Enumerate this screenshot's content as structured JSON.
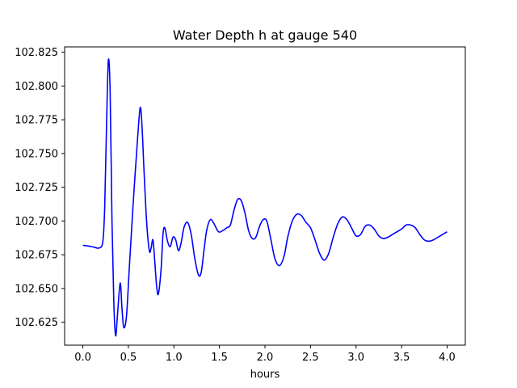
{
  "chart_data": {
    "type": "line",
    "title": "Water Depth h at gauge 540",
    "xlabel": "hours",
    "ylabel": "",
    "xlim": [
      -0.2,
      4.2
    ],
    "ylim": [
      102.608,
      102.829
    ],
    "xticks": [
      0.0,
      0.5,
      1.0,
      1.5,
      2.0,
      2.5,
      3.0,
      3.5,
      4.0
    ],
    "xtick_labels": [
      "0.0",
      "0.5",
      "1.0",
      "1.5",
      "2.0",
      "2.5",
      "3.0",
      "3.5",
      "4.0"
    ],
    "yticks": [
      102.625,
      102.65,
      102.675,
      102.7,
      102.725,
      102.75,
      102.775,
      102.8,
      102.825
    ],
    "ytick_labels": [
      "102.625",
      "102.650",
      "102.675",
      "102.700",
      "102.725",
      "102.750",
      "102.775",
      "102.800",
      "102.825"
    ],
    "grid": false,
    "series": [
      {
        "color": "#0000ff",
        "x": [
          0.0,
          0.1,
          0.18,
          0.22,
          0.24,
          0.26,
          0.28,
          0.3,
          0.32,
          0.34,
          0.36,
          0.38,
          0.41,
          0.43,
          0.45,
          0.48,
          0.51,
          0.55,
          0.6,
          0.63,
          0.65,
          0.67,
          0.7,
          0.73,
          0.75,
          0.77,
          0.79,
          0.81,
          0.83,
          0.86,
          0.88,
          0.9,
          0.93,
          0.96,
          0.99,
          1.02,
          1.05,
          1.08,
          1.11,
          1.15,
          1.19,
          1.23,
          1.27,
          1.3,
          1.33,
          1.36,
          1.4,
          1.44,
          1.49,
          1.54,
          1.58,
          1.62,
          1.66,
          1.7,
          1.74,
          1.78,
          1.82,
          1.86,
          1.9,
          1.94,
          1.98,
          2.02,
          2.06,
          2.11,
          2.16,
          2.21,
          2.25,
          2.3,
          2.35,
          2.4,
          2.45,
          2.5,
          2.55,
          2.6,
          2.65,
          2.7,
          2.75,
          2.8,
          2.85,
          2.9,
          2.95,
          3.0,
          3.05,
          3.1,
          3.15,
          3.2,
          3.25,
          3.3,
          3.35,
          3.4,
          3.45,
          3.5,
          3.55,
          3.6,
          3.65,
          3.7,
          3.75,
          3.8,
          3.85,
          3.9,
          3.95,
          4.0
        ],
        "y": [
          102.682,
          102.681,
          102.68,
          102.685,
          102.71,
          102.77,
          102.819,
          102.795,
          102.7,
          102.64,
          102.615,
          102.63,
          102.654,
          102.635,
          102.621,
          102.63,
          102.665,
          102.71,
          102.76,
          102.784,
          102.77,
          102.74,
          102.7,
          102.678,
          102.68,
          102.686,
          102.67,
          102.652,
          102.646,
          102.665,
          102.69,
          102.695,
          102.685,
          102.681,
          102.688,
          102.686,
          102.678,
          102.684,
          102.695,
          102.699,
          102.69,
          102.672,
          102.66,
          102.662,
          102.678,
          102.693,
          102.701,
          102.698,
          102.692,
          102.693,
          102.695,
          102.697,
          102.708,
          102.716,
          102.715,
          102.706,
          102.693,
          102.687,
          102.688,
          102.696,
          102.701,
          102.7,
          102.688,
          102.672,
          102.667,
          102.674,
          102.688,
          102.7,
          102.705,
          102.704,
          102.699,
          102.695,
          102.686,
          102.676,
          102.671,
          102.676,
          102.688,
          102.698,
          102.703,
          102.701,
          102.695,
          102.689,
          102.69,
          102.696,
          102.697,
          102.694,
          102.689,
          102.687,
          102.688,
          102.69,
          102.692,
          102.694,
          102.697,
          102.697,
          102.695,
          102.69,
          102.686,
          102.685,
          102.686,
          102.688,
          102.69,
          102.692
        ]
      }
    ]
  }
}
